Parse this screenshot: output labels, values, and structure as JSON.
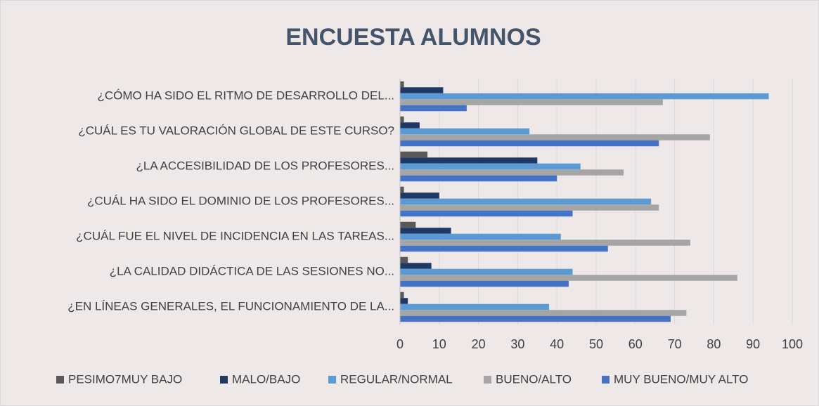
{
  "chart_data": {
    "type": "hbar",
    "title": "ENCUESTA ALUMNOS",
    "categories": [
      "¿CÓMO HA SIDO EL RITMO DE DESARROLLO DEL...",
      "¿CUÁL ES TU VALORACIÓN GLOBAL DE ESTE CURSO?",
      "¿LA ACCESIBILIDAD DE LOS PROFESORES...",
      "¿CUÁL HA SIDO EL DOMINIO DE LOS PROFESORES...",
      "¿CUÁL FUE EL NIVEL DE INCIDENCIA EN LAS TAREAS...",
      "¿LA CALIDAD DIDÁCTICA DE LAS SESIONES NO...",
      "¿EN LÍNEAS GENERALES, EL FUNCIONAMIENTO DE LA..."
    ],
    "series": [
      {
        "name": "PESIMO7MUY BAJO",
        "color": "#595959",
        "values": [
          1,
          1,
          7,
          1,
          4,
          2,
          1
        ]
      },
      {
        "name": "MALO/BAJO",
        "color": "#203864",
        "values": [
          11,
          5,
          35,
          10,
          13,
          8,
          2
        ]
      },
      {
        "name": "REGULAR/NORMAL",
        "color": "#5b9bd5",
        "values": [
          94,
          33,
          46,
          64,
          41,
          44,
          38
        ]
      },
      {
        "name": "BUENO/ALTO",
        "color": "#a5a5a5",
        "values": [
          67,
          79,
          57,
          66,
          74,
          86,
          73
        ]
      },
      {
        "name": "MUY BUENO/MUY ALTO",
        "color": "#4472c4",
        "values": [
          17,
          66,
          40,
          44,
          53,
          43,
          69
        ]
      }
    ],
    "xlim": [
      0,
      100
    ],
    "xticks": [
      0,
      10,
      20,
      30,
      40,
      50,
      60,
      70,
      80,
      90,
      100
    ],
    "grid": true,
    "legend": "bottom"
  }
}
